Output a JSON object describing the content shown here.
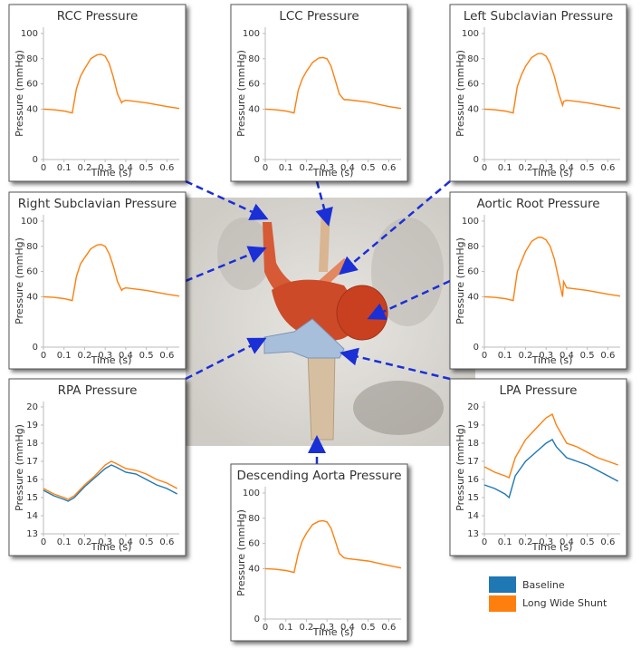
{
  "chart_data": [
    {
      "type": "line",
      "title": "RCC Pressure",
      "xlabel": "Time (s)",
      "ylabel": "Pressure (mmHg)",
      "x": [
        0,
        0.05,
        0.1,
        0.14,
        0.16,
        0.18,
        0.2,
        0.23,
        0.26,
        0.28,
        0.3,
        0.32,
        0.34,
        0.36,
        0.38,
        0.385,
        0.4,
        0.5,
        0.6,
        0.66
      ],
      "xlim": [
        0,
        0.66
      ],
      "xticks": [
        0,
        0.1,
        0.2,
        0.3,
        0.4,
        0.5,
        0.6
      ],
      "ylim": [
        0,
        105
      ],
      "yticks": [
        0,
        40,
        60,
        80,
        100
      ],
      "series": [
        {
          "color": "#ff7f0e",
          "values": [
            40,
            39.5,
            38.5,
            37,
            56,
            66,
            72,
            80,
            83,
            83.5,
            82,
            76,
            65,
            52,
            45,
            46,
            47,
            45,
            42,
            40.5
          ]
        }
      ]
    },
    {
      "type": "line",
      "title": "LCC Pressure",
      "xlabel": "Time (s)",
      "ylabel": "Pressure (mmHg)",
      "x": [
        0,
        0.05,
        0.1,
        0.14,
        0.16,
        0.18,
        0.2,
        0.23,
        0.26,
        0.28,
        0.3,
        0.32,
        0.34,
        0.36,
        0.38,
        0.385,
        0.4,
        0.5,
        0.6,
        0.66
      ],
      "xlim": [
        0,
        0.66
      ],
      "xticks": [
        0,
        0.1,
        0.2,
        0.3,
        0.4,
        0.5,
        0.6
      ],
      "ylim": [
        0,
        105
      ],
      "yticks": [
        0,
        40,
        60,
        80,
        100
      ],
      "series": [
        {
          "color": "#ff7f0e",
          "values": [
            40,
            39.5,
            38.5,
            37,
            55,
            64,
            70,
            77,
            80.5,
            81,
            80,
            74,
            63,
            52,
            48,
            47.5,
            47.5,
            45.5,
            42,
            40.5
          ]
        }
      ]
    },
    {
      "type": "line",
      "title": "Left Subclavian Pressure",
      "xlabel": "Time (s)",
      "ylabel": "Pressure (mmHg)",
      "x": [
        0,
        0.05,
        0.1,
        0.14,
        0.16,
        0.18,
        0.2,
        0.23,
        0.26,
        0.28,
        0.3,
        0.32,
        0.34,
        0.36,
        0.38,
        0.385,
        0.4,
        0.5,
        0.6,
        0.66
      ],
      "xlim": [
        0,
        0.66
      ],
      "xticks": [
        0,
        0.1,
        0.2,
        0.3,
        0.4,
        0.5,
        0.6
      ],
      "ylim": [
        0,
        105
      ],
      "yticks": [
        0,
        40,
        60,
        80,
        100
      ],
      "series": [
        {
          "color": "#ff7f0e",
          "values": [
            40,
            39.5,
            38.5,
            37,
            58,
            67,
            74,
            81,
            84,
            84,
            82,
            76,
            66,
            53,
            43,
            46,
            47,
            45,
            42,
            40.5
          ]
        }
      ]
    },
    {
      "type": "line",
      "title": "Right Subclavian Pressure",
      "xlabel": "Time (s)",
      "ylabel": "Pressure (mmHg)",
      "x": [
        0,
        0.05,
        0.1,
        0.14,
        0.16,
        0.18,
        0.2,
        0.23,
        0.26,
        0.28,
        0.3,
        0.32,
        0.34,
        0.36,
        0.38,
        0.385,
        0.4,
        0.5,
        0.6,
        0.66
      ],
      "xlim": [
        0,
        0.66
      ],
      "xticks": [
        0,
        0.1,
        0.2,
        0.3,
        0.4,
        0.5,
        0.6
      ],
      "ylim": [
        0,
        105
      ],
      "yticks": [
        0,
        40,
        60,
        80,
        100
      ],
      "series": [
        {
          "color": "#ff7f0e",
          "values": [
            40,
            39.5,
            38.5,
            37,
            56,
            66,
            71,
            78,
            81,
            81.5,
            80,
            74,
            64,
            52,
            45,
            46,
            47,
            45,
            42,
            40.5
          ]
        }
      ]
    },
    {
      "type": "line",
      "title": "Aortic Root Pressure",
      "xlabel": "Time (s)",
      "ylabel": "Pressure (mmHg)",
      "x": [
        0,
        0.05,
        0.1,
        0.14,
        0.16,
        0.18,
        0.2,
        0.23,
        0.26,
        0.28,
        0.3,
        0.32,
        0.34,
        0.36,
        0.38,
        0.385,
        0.4,
        0.5,
        0.6,
        0.66
      ],
      "xlim": [
        0,
        0.66
      ],
      "xticks": [
        0,
        0.1,
        0.2,
        0.3,
        0.4,
        0.5,
        0.6
      ],
      "ylim": [
        0,
        105
      ],
      "yticks": [
        0,
        40,
        60,
        80,
        100
      ],
      "series": [
        {
          "color": "#ff7f0e",
          "values": [
            40,
            39.5,
            38.5,
            37,
            60,
            68,
            76,
            84,
            87,
            87,
            85,
            80,
            70,
            55,
            40,
            52,
            47,
            45,
            42,
            40.5
          ]
        }
      ]
    },
    {
      "type": "line",
      "title": "RPA Pressure",
      "xlabel": "Time (s)",
      "ylabel": "Pressure (mmHg)",
      "x": [
        0,
        0.05,
        0.1,
        0.12,
        0.15,
        0.2,
        0.25,
        0.3,
        0.33,
        0.35,
        0.4,
        0.45,
        0.5,
        0.55,
        0.6,
        0.65
      ],
      "xlim": [
        0,
        0.66
      ],
      "xticks": [
        0,
        0.1,
        0.2,
        0.3,
        0.4,
        0.5,
        0.6
      ],
      "ylim": [
        13,
        20.3
      ],
      "yticks": [
        13,
        14,
        15,
        16,
        17,
        18,
        19,
        20
      ],
      "series": [
        {
          "name": "Baseline",
          "color": "#1f77b4",
          "values": [
            15.4,
            15.1,
            14.9,
            14.8,
            15.0,
            15.6,
            16.1,
            16.6,
            16.8,
            16.7,
            16.4,
            16.3,
            16.0,
            15.7,
            15.5,
            15.2
          ]
        },
        {
          "name": "Long Wide Shunt",
          "color": "#ff7f0e",
          "values": [
            15.5,
            15.2,
            15.0,
            14.9,
            15.1,
            15.7,
            16.2,
            16.8,
            17.0,
            16.9,
            16.6,
            16.5,
            16.3,
            16.0,
            15.8,
            15.5
          ]
        }
      ]
    },
    {
      "type": "line",
      "title": "LPA Pressure",
      "xlabel": "Time (s)",
      "ylabel": "Pressure (mmHg)",
      "x": [
        0,
        0.05,
        0.1,
        0.12,
        0.15,
        0.2,
        0.25,
        0.3,
        0.33,
        0.35,
        0.4,
        0.45,
        0.5,
        0.55,
        0.6,
        0.65
      ],
      "xlim": [
        0,
        0.66
      ],
      "xticks": [
        0,
        0.1,
        0.2,
        0.3,
        0.4,
        0.5,
        0.6
      ],
      "ylim": [
        13,
        20.3
      ],
      "yticks": [
        13,
        14,
        15,
        16,
        17,
        18,
        19,
        20
      ],
      "series": [
        {
          "color": "#1f77b4",
          "values": [
            15.7,
            15.5,
            15.2,
            15.0,
            16.2,
            17.0,
            17.5,
            18.0,
            18.2,
            17.8,
            17.2,
            17.0,
            16.8,
            16.5,
            16.2,
            15.9
          ]
        },
        {
          "color": "#ff7f0e",
          "values": [
            16.7,
            16.4,
            16.2,
            16.1,
            17.2,
            18.2,
            18.8,
            19.4,
            19.6,
            19.0,
            18.0,
            17.8,
            17.5,
            17.2,
            17.0,
            16.8
          ]
        }
      ]
    },
    {
      "type": "line",
      "title": "Descending Aorta Pressure",
      "xlabel": "Time (s)",
      "ylabel": "Pressure (mmHg)",
      "x": [
        0,
        0.05,
        0.1,
        0.14,
        0.16,
        0.18,
        0.2,
        0.23,
        0.26,
        0.28,
        0.3,
        0.32,
        0.34,
        0.36,
        0.38,
        0.385,
        0.4,
        0.5,
        0.6,
        0.66
      ],
      "xlim": [
        0,
        0.66
      ],
      "xticks": [
        0,
        0.1,
        0.2,
        0.3,
        0.4,
        0.5,
        0.6
      ],
      "ylim": [
        0,
        105
      ],
      "yticks": [
        0,
        40,
        60,
        80,
        100
      ],
      "series": [
        {
          "color": "#ff7f0e",
          "values": [
            40,
            39.5,
            38.5,
            37,
            52,
            62,
            68,
            75,
            77.5,
            78,
            77,
            72,
            62,
            52,
            49,
            48.5,
            48,
            46,
            42.5,
            40.5
          ]
        }
      ]
    }
  ]
}
